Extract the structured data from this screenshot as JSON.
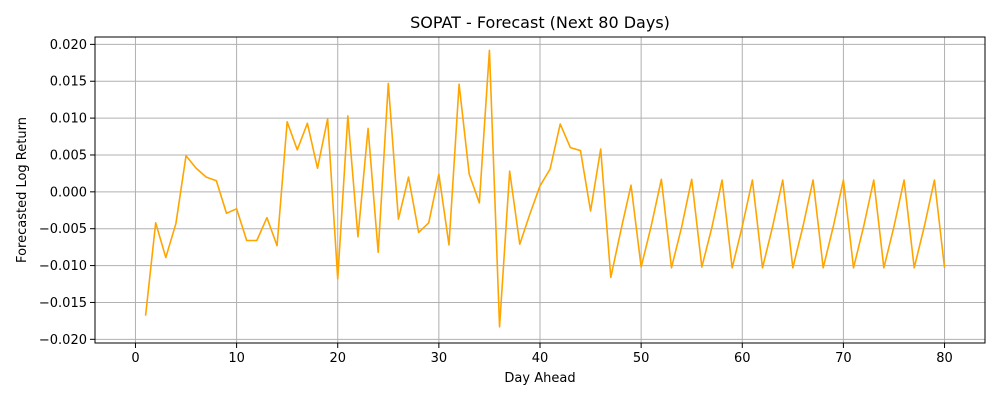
{
  "chart_data": {
    "type": "line",
    "title": "SOPAT - Forecast (Next 80 Days)",
    "xlabel": "Day Ahead",
    "ylabel": "Forecasted Log Return",
    "xlim": [
      -4,
      84
    ],
    "ylim": [
      -0.0205,
      0.021
    ],
    "xticks": [
      0,
      10,
      20,
      30,
      40,
      50,
      60,
      70,
      80
    ],
    "xtick_labels": [
      "0",
      "10",
      "20",
      "30",
      "40",
      "50",
      "60",
      "70",
      "80"
    ],
    "yticks": [
      -0.02,
      -0.015,
      -0.01,
      -0.005,
      0.0,
      0.005,
      0.01,
      0.015,
      0.02
    ],
    "ytick_labels": [
      "−0.020",
      "−0.015",
      "−0.010",
      "−0.005",
      "0.000",
      "0.005",
      "0.010",
      "0.015",
      "0.020"
    ],
    "grid": true,
    "series": [
      {
        "color": "#FFA500",
        "x": [
          1,
          2,
          3,
          4,
          5,
          6,
          7,
          8,
          9,
          10,
          11,
          12,
          13,
          14,
          15,
          16,
          17,
          18,
          19,
          20,
          21,
          22,
          23,
          24,
          25,
          26,
          27,
          28,
          29,
          30,
          31,
          32,
          33,
          34,
          35,
          36,
          37,
          38,
          39,
          40,
          41,
          42,
          43,
          44,
          45,
          46,
          47,
          48,
          49,
          50,
          51,
          52,
          53,
          54,
          55,
          56,
          57,
          58,
          59,
          60,
          61,
          62,
          63,
          64,
          65,
          66,
          67,
          68,
          69,
          70,
          71,
          72,
          73,
          74,
          75,
          76,
          77,
          78,
          79,
          80
        ],
        "y": [
          -0.0168,
          -0.0042,
          -0.0089,
          -0.0043,
          0.0049,
          0.0032,
          0.002,
          0.0015,
          -0.0029,
          -0.0023,
          -0.0066,
          -0.0066,
          -0.0035,
          -0.0073,
          0.0095,
          0.0057,
          0.0093,
          0.0032,
          0.0099,
          -0.0118,
          0.0103,
          -0.0061,
          0.0086,
          -0.0082,
          0.0147,
          -0.0037,
          0.002,
          -0.0055,
          -0.0042,
          0.0024,
          -0.0072,
          0.0146,
          0.0024,
          -0.0015,
          0.0192,
          -0.0183,
          0.0028,
          -0.0071,
          -0.003,
          0.0008,
          0.0031,
          0.0092,
          0.006,
          0.0056,
          -0.0026,
          0.0058,
          -0.0116,
          -0.0052,
          0.0009,
          -0.0102,
          -0.0046,
          0.0017,
          -0.0103,
          -0.0048,
          0.0017,
          -0.0102,
          -0.0048,
          0.0016,
          -0.0103,
          -0.0047,
          0.0016,
          -0.0103,
          -0.0047,
          0.0016,
          -0.0103,
          -0.0047,
          0.0016,
          -0.0103,
          -0.0047,
          0.0016,
          -0.0103,
          -0.0047,
          0.0016,
          -0.0103,
          -0.0047,
          0.0016,
          -0.0103,
          -0.0047,
          0.0016,
          -0.0103
        ]
      }
    ]
  }
}
